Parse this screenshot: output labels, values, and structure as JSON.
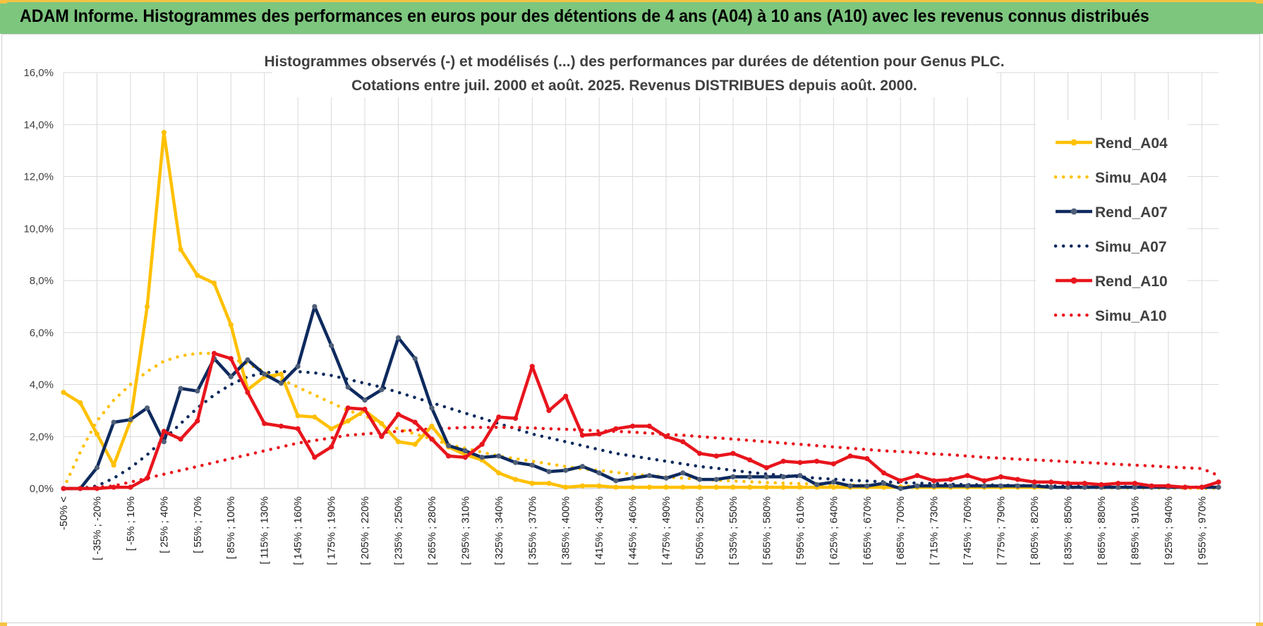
{
  "header": {
    "title": "ADAM Informe. Histogrammes des performances en euros pour des détentions de 4 ans (A04) à 10 ans (A10) avec les revenus connus distribués"
  },
  "chart_data": {
    "type": "line",
    "title": "Histogrammes observés (-) et modélisés (...) des performances par durées de détention pour Genus PLC.",
    "subtitle": "Cotations entre juil. 2000 et août. 2025. Revenus DISTRIBUES depuis août. 2000.",
    "xlabel": "",
    "ylabel": "",
    "ylim": [
      0,
      16
    ],
    "y_ticks": [
      "0,0%",
      "2,0%",
      "4,0%",
      "6,0%",
      "8,0%",
      "10,0%",
      "12,0%",
      "14,0%",
      "16,0%"
    ],
    "grid": true,
    "legend_position": "right",
    "x_tick_labels": [
      "-50% <",
      "[ -35% ; -20%",
      "[ -5% ; 10%",
      "[ 25% ; 40%",
      "[ 55% ; 70%",
      "[ 85% ; 100%",
      "[ 115% ; 130%",
      "[ 145% ; 160%",
      "[ 175% ; 190%",
      "[ 205% ; 220%",
      "[ 235% ; 250%",
      "[ 265% ; 280%",
      "[ 295% ; 310%",
      "[ 325% ; 340%",
      "[ 355% ; 370%",
      "[ 385% ; 400%",
      "[ 415% ; 430%",
      "[ 445% ; 460%",
      "[ 475% ; 490%",
      "[ 505% ; 520%",
      "[ 535% ; 550%",
      "[ 565% ; 580%",
      "[ 595% ; 610%",
      "[ 625% ; 640%",
      "[ 655% ; 670%",
      "[ 685% ; 700%",
      "[ 715% ; 730%",
      "[ 745% ; 760%",
      "[ 775% ; 790%",
      "[ 805% ; 820%",
      "[ 835% ; 850%",
      "[ 865% ; 880%",
      "[ 895% ; 910%",
      "[ 925% ; 940%",
      "[ 955% ; 970%"
    ],
    "series": [
      {
        "name": "Rend_A04",
        "color": "#ffc000",
        "style": "solid",
        "markers": true,
        "values": [
          3.7,
          3.3,
          2.1,
          0.9,
          2.6,
          7.0,
          13.7,
          9.2,
          8.2,
          7.9,
          6.3,
          3.8,
          4.3,
          4.4,
          2.8,
          2.75,
          2.3,
          2.6,
          3.0,
          2.5,
          1.8,
          1.7,
          2.4,
          1.6,
          1.3,
          1.1,
          0.6,
          0.35,
          0.2,
          0.2,
          0.05,
          0.1,
          0.1,
          0.05,
          0.05,
          0.05,
          0.05,
          0.05,
          0.05,
          0.05,
          0.05,
          0.05,
          0.05,
          0.05,
          0.05,
          0.05,
          0.05,
          0.05,
          0.05,
          0.05,
          0.05,
          0.05,
          0.05,
          0.05,
          0.05,
          0.05,
          0.05,
          0.05,
          0.05,
          0.05,
          0.05,
          0.05,
          0.05,
          0.05,
          0.05,
          0.05,
          0.05,
          0.05,
          0.05,
          0.05
        ]
      },
      {
        "name": "Simu_A04",
        "color": "#ffc000",
        "style": "dotted",
        "markers": false,
        "values": [
          0.0,
          1.4,
          2.6,
          3.4,
          4.0,
          4.5,
          4.9,
          5.1,
          5.2,
          5.2,
          5.0,
          4.8,
          4.5,
          4.2,
          3.9,
          3.6,
          3.3,
          3.0,
          2.8,
          2.5,
          2.3,
          2.1,
          1.9,
          1.7,
          1.55,
          1.4,
          1.25,
          1.15,
          1.05,
          0.95,
          0.85,
          0.75,
          0.7,
          0.62,
          0.55,
          0.5,
          0.45,
          0.4,
          0.36,
          0.32,
          0.29,
          0.26,
          0.23,
          0.21,
          0.19,
          0.17,
          0.15,
          0.14,
          0.12,
          0.11,
          0.1,
          0.09,
          0.08,
          0.07,
          0.06,
          0.06,
          0.05,
          0.05,
          0.04,
          0.04,
          0.03,
          0.03,
          0.03,
          0.02,
          0.02,
          0.02,
          0.02,
          0.01,
          0.01,
          0.01
        ]
      },
      {
        "name": "Rend_A07",
        "color": "#0e2a5e",
        "style": "solid",
        "markers": true,
        "values": [
          0.0,
          0.0,
          0.8,
          2.55,
          2.65,
          3.1,
          1.8,
          3.85,
          3.75,
          5.0,
          4.3,
          4.95,
          4.4,
          4.05,
          4.7,
          7.0,
          5.5,
          3.9,
          3.4,
          3.8,
          5.8,
          5.0,
          3.1,
          1.65,
          1.45,
          1.2,
          1.25,
          1.0,
          0.9,
          0.65,
          0.7,
          0.85,
          0.6,
          0.3,
          0.4,
          0.5,
          0.4,
          0.6,
          0.35,
          0.35,
          0.45,
          0.45,
          0.45,
          0.45,
          0.5,
          0.15,
          0.25,
          0.1,
          0.1,
          0.2,
          0.0,
          0.1,
          0.1,
          0.1,
          0.1,
          0.1,
          0.1,
          0.1,
          0.1,
          0.05,
          0.05,
          0.05,
          0.05,
          0.05,
          0.05,
          0.05,
          0.05,
          0.05,
          0.05,
          0.05
        ]
      },
      {
        "name": "Simu_A07",
        "color": "#0e2a5e",
        "style": "dotted",
        "markers": false,
        "values": [
          0.0,
          0.0,
          0.1,
          0.4,
          0.8,
          1.3,
          1.9,
          2.5,
          3.1,
          3.6,
          4.0,
          4.3,
          4.45,
          4.5,
          4.5,
          4.45,
          4.35,
          4.2,
          4.05,
          3.9,
          3.7,
          3.5,
          3.3,
          3.1,
          2.9,
          2.7,
          2.5,
          2.3,
          2.1,
          1.95,
          1.8,
          1.65,
          1.5,
          1.35,
          1.25,
          1.15,
          1.05,
          0.95,
          0.85,
          0.78,
          0.7,
          0.62,
          0.56,
          0.5,
          0.45,
          0.4,
          0.36,
          0.32,
          0.29,
          0.26,
          0.23,
          0.21,
          0.19,
          0.17,
          0.15,
          0.14,
          0.13,
          0.12,
          0.11,
          0.1,
          0.09,
          0.08,
          0.08,
          0.07,
          0.07,
          0.06,
          0.06,
          0.06,
          0.05,
          0.05
        ]
      },
      {
        "name": "Rend_A10",
        "color": "#e8151d",
        "style": "solid",
        "markers": true,
        "values": [
          0.0,
          0.0,
          0.0,
          0.05,
          0.05,
          0.4,
          2.2,
          1.9,
          2.6,
          5.2,
          5.0,
          3.7,
          2.5,
          2.4,
          2.3,
          1.2,
          1.6,
          3.1,
          3.05,
          2.0,
          2.85,
          2.55,
          1.9,
          1.25,
          1.2,
          1.7,
          2.75,
          2.7,
          4.7,
          3.0,
          3.55,
          2.05,
          2.1,
          2.3,
          2.4,
          2.4,
          2.0,
          1.8,
          1.35,
          1.25,
          1.35,
          1.1,
          0.8,
          1.05,
          1.0,
          1.05,
          0.95,
          1.25,
          1.15,
          0.6,
          0.3,
          0.5,
          0.3,
          0.35,
          0.5,
          0.3,
          0.45,
          0.35,
          0.25,
          0.25,
          0.2,
          0.2,
          0.15,
          0.2,
          0.2,
          0.1,
          0.1,
          0.05,
          0.05,
          0.25
        ]
      },
      {
        "name": "Simu_A10",
        "color": "#e8151d",
        "style": "dotted",
        "markers": false,
        "values": [
          0.0,
          0.0,
          0.05,
          0.1,
          0.25,
          0.4,
          0.55,
          0.7,
          0.85,
          1.0,
          1.15,
          1.3,
          1.45,
          1.6,
          1.75,
          1.85,
          1.95,
          2.05,
          2.1,
          2.15,
          2.2,
          2.25,
          2.3,
          2.32,
          2.35,
          2.35,
          2.35,
          2.35,
          2.33,
          2.3,
          2.28,
          2.25,
          2.22,
          2.2,
          2.17,
          2.13,
          2.08,
          2.05,
          2.0,
          1.95,
          1.9,
          1.85,
          1.8,
          1.75,
          1.7,
          1.65,
          1.6,
          1.55,
          1.5,
          1.45,
          1.42,
          1.38,
          1.33,
          1.3,
          1.25,
          1.2,
          1.17,
          1.13,
          1.1,
          1.07,
          1.03,
          1.0,
          0.97,
          0.93,
          0.9,
          0.87,
          0.83,
          0.8,
          0.77,
          0.5
        ]
      }
    ]
  }
}
